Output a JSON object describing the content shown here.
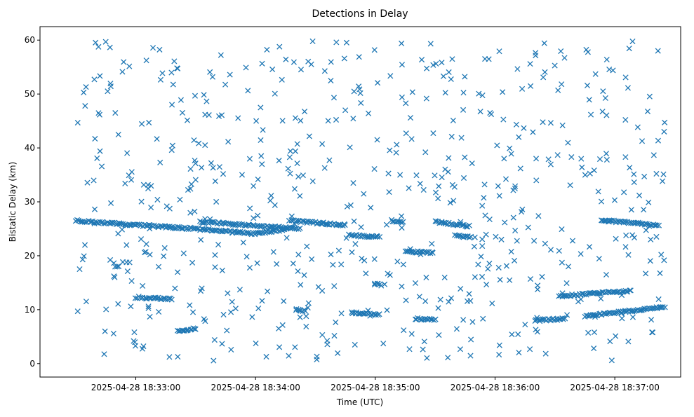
{
  "chart_data": {
    "type": "scatter",
    "title": "Detections in Delay",
    "xlabel": "Time (UTC)",
    "ylabel": "Bistatic Delay (km)",
    "x_unit": "seconds after 2025-04-28 18:32:30 UTC",
    "xlim": [
      -18,
      303
    ],
    "ylim": [
      -2.5,
      62.5
    ],
    "x_ticks": [
      {
        "x": 30,
        "label": "2025-04-28 18:33:00"
      },
      {
        "x": 90,
        "label": "2025-04-28 18:34:00"
      },
      {
        "x": 150,
        "label": "2025-04-28 18:35:00"
      },
      {
        "x": 210,
        "label": "2025-04-28 18:36:00"
      },
      {
        "x": 270,
        "label": "2025-04-28 18:37:00"
      }
    ],
    "y_ticks": [
      0,
      10,
      20,
      30,
      40,
      50,
      60
    ],
    "marker": "x",
    "color": "#1f77b4",
    "grid": false,
    "legend": "none",
    "series": [
      {
        "name": "",
        "x_start": 0,
        "x_end": 295,
        "tracks": [
          {
            "x": [
              0,
              30,
              60,
              90,
              106
            ],
            "y": [
              26.5,
              25.7,
              25.0,
              24.1,
              25.0
            ],
            "note_points": 150
          },
          {
            "x": [
              62,
              112
            ],
            "y": [
              26.3,
              25.0
            ]
          },
          {
            "x": [
              107,
              135
            ],
            "y": [
              26.5,
              25.7
            ]
          },
          {
            "x": [
              137,
              152
            ],
            "y": [
              23.8,
              23.5
            ]
          },
          {
            "x": [
              150,
              153
            ],
            "y": [
              14.8,
              14.6
            ]
          },
          {
            "x": [
              158,
              164
            ],
            "y": [
              26.5,
              26.2
            ]
          },
          {
            "x": [
              165,
              179
            ],
            "y": [
              20.8,
              20.6
            ]
          },
          {
            "x": [
              180,
              197
            ],
            "y": [
              26.3,
              25.5
            ]
          },
          {
            "x": [
              190,
              198
            ],
            "y": [
              23.8,
              23.4
            ]
          },
          {
            "x": [
              30,
              48
            ],
            "y": [
              12.3,
              12.0
            ]
          },
          {
            "x": [
              51,
              60
            ],
            "y": [
              6.0,
              6.5
            ]
          },
          {
            "x": [
              110,
              115
            ],
            "y": [
              10.0,
              9.8
            ]
          },
          {
            "x": [
              138,
              152
            ],
            "y": [
              9.5,
              9.1
            ]
          },
          {
            "x": [
              170,
              180
            ],
            "y": [
              8.3,
              8.2
            ]
          },
          {
            "x": [
              230,
              245
            ],
            "y": [
              8.0,
              8.3
            ]
          },
          {
            "x": [
              242,
              278
            ],
            "y": [
              12.5,
              13.5
            ]
          },
          {
            "x": [
              255,
              295
            ],
            "y": [
              8.8,
              10.5
            ]
          },
          {
            "x": [
              263,
              292
            ],
            "y": [
              26.6,
              25.7
            ]
          }
        ]
      }
    ]
  }
}
